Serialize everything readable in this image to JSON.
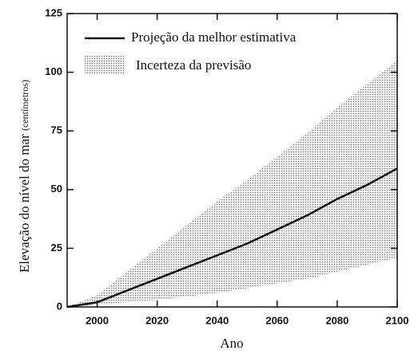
{
  "chart_data": {
    "type": "line",
    "xlabel": "Ano",
    "ylabel": "Elevação do nível do mar",
    "ylabel_unit": "(centímetros)",
    "x": [
      1990,
      2000,
      2010,
      2020,
      2030,
      2040,
      2050,
      2060,
      2070,
      2080,
      2090,
      2100
    ],
    "series": [
      {
        "name": "Projeção da melhor estimativa",
        "color": "#111111",
        "values": [
          0,
          2,
          7,
          12,
          17,
          22,
          27,
          33,
          39,
          46,
          52,
          59
        ]
      }
    ],
    "band": {
      "name": "Incerteza da previsão",
      "color": "#9a9a9a",
      "upper": [
        0,
        5,
        15,
        25,
        35,
        45,
        54,
        64,
        74,
        85,
        95,
        105
      ],
      "lower": [
        0,
        1,
        2,
        3,
        4.5,
        6,
        8,
        10,
        12,
        15,
        18,
        21
      ]
    },
    "xlim": [
      1990,
      2100
    ],
    "xticks": [
      2000,
      2020,
      2040,
      2060,
      2080,
      2100
    ],
    "ylim": [
      0,
      125
    ],
    "yticks": [
      0,
      25,
      50,
      75,
      100,
      125
    ],
    "grid": false,
    "legend": "upper left"
  }
}
